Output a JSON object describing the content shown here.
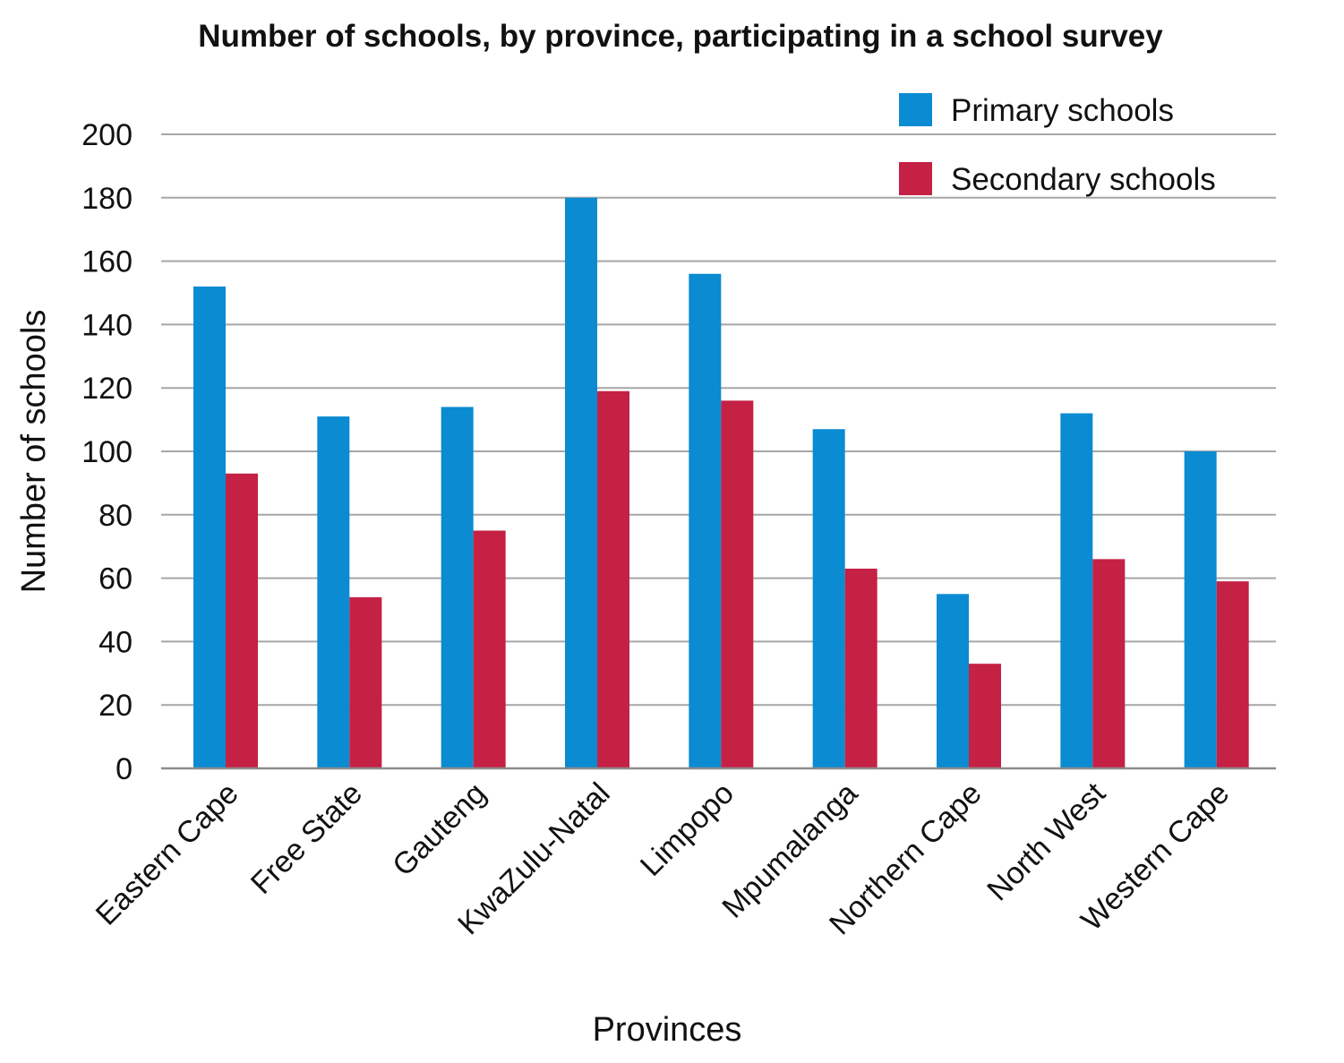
{
  "chart_data": {
    "type": "bar",
    "title": "Number of schools, by province, participating in a school survey",
    "xlabel": "Provinces",
    "ylabel": "Number of schools",
    "ylim": [
      0,
      200
    ],
    "yticks": [
      0,
      20,
      40,
      60,
      80,
      100,
      120,
      140,
      160,
      180,
      200
    ],
    "grid": true,
    "legend_position": "top-right",
    "categories": [
      "Eastern Cape",
      "Free State",
      "Gauteng",
      "KwaZulu-Natal",
      "Limpopo",
      "Mpumalanga",
      "Northern Cape",
      "North West",
      "Western Cape"
    ],
    "series": [
      {
        "name": "Primary schools",
        "color": "#0a8bd2",
        "values": [
          152,
          111,
          114,
          180,
          156,
          107,
          55,
          112,
          100
        ]
      },
      {
        "name": "Secondary schools",
        "color": "#c42144",
        "values": [
          93,
          54,
          75,
          119,
          116,
          63,
          33,
          66,
          59
        ]
      }
    ]
  }
}
